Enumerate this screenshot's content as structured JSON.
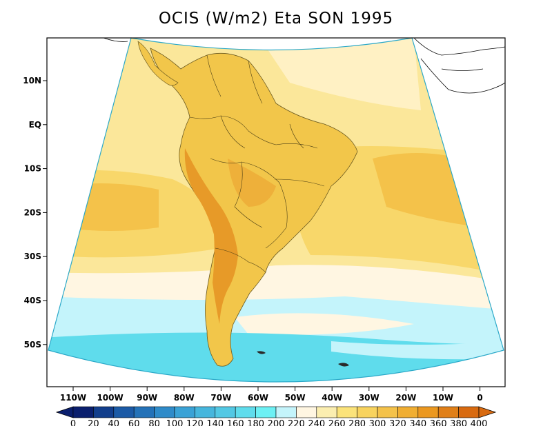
{
  "title": "OCIS (W/m2) Eta SON 1995",
  "lat_labels": [
    "10N",
    "EQ",
    "10S",
    "20S",
    "30S",
    "40S",
    "50S"
  ],
  "lon_labels": [
    "110W",
    "100W",
    "90W",
    "80W",
    "70W",
    "60W",
    "50W",
    "40W",
    "30W",
    "20W",
    "10W",
    "0"
  ],
  "colorbar": {
    "values": [
      "0",
      "20",
      "40",
      "60",
      "80",
      "100",
      "120",
      "140",
      "160",
      "180",
      "200",
      "220",
      "240",
      "260",
      "280",
      "300",
      "320",
      "340",
      "360",
      "380",
      "400"
    ],
    "colors": [
      "#0a1f6e",
      "#123e8c",
      "#1b5aa6",
      "#2472b8",
      "#2f8bc9",
      "#3aa2d6",
      "#46b6dd",
      "#52c8e4",
      "#5fdcec",
      "#6cf0f4",
      "#c4f4fb",
      "#fff6e2",
      "#fbeeb0",
      "#fbe37a",
      "#f8d35e",
      "#f4c24a",
      "#f0ae32",
      "#eb9820",
      "#e07f18",
      "#d86a10"
    ]
  },
  "regions": {
    "ocean_north": "#fbe79a",
    "subtropical_band": "#f8d76a",
    "land_high": "#f2c64a",
    "andes_peak": "#e79a28",
    "southern_pale": "#fff6e2",
    "southern_cyan": "#c4f4fb",
    "polar_cyan": "#5fdcec"
  }
}
